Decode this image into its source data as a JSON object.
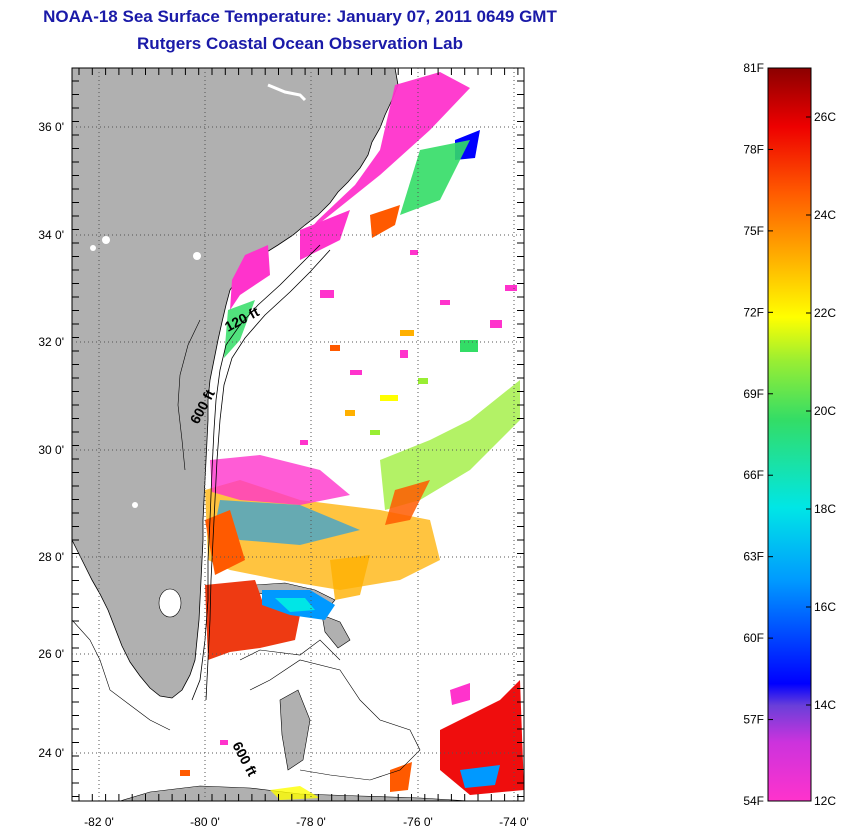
{
  "header": {
    "title": "NOAA-18 Sea Surface Temperature:  January 07, 2011 0649 GMT",
    "subtitle": "Rutgers Coastal Ocean Observation Lab"
  },
  "map": {
    "lon_ticks": [
      "-82 0'",
      "-80 0'",
      "-78 0'",
      "-76 0'",
      "-74 0'"
    ],
    "lat_ticks": [
      "36 0'",
      "34 0'",
      "32 0'",
      "30 0'",
      "28 0'",
      "26 0'",
      "24 0'"
    ],
    "contour_labels": [
      "120 ft",
      "600 ft",
      "600 ft"
    ],
    "land_color": "#b0b0b0"
  },
  "colorbar": {
    "fahrenheit_labels": [
      "81F",
      "78F",
      "75F",
      "72F",
      "69F",
      "66F",
      "63F",
      "60F",
      "57F",
      "54F"
    ],
    "celsius_labels": [
      "26C",
      "24C",
      "22C",
      "20C",
      "18C",
      "16C",
      "14C",
      "12C"
    ],
    "colors": [
      "#ff33cc",
      "#7f3fd9",
      "#0000ff",
      "#0099ff",
      "#00e6e6",
      "#33dd66",
      "#99ee33",
      "#ffff00",
      "#ffb000",
      "#ff5a00",
      "#ee0000",
      "#8b0000"
    ]
  }
}
